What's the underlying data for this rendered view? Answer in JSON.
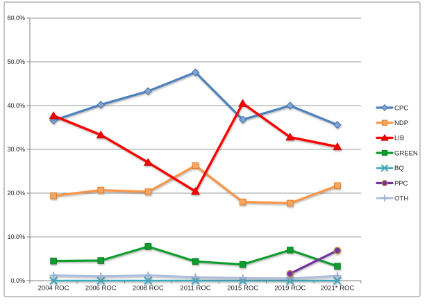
{
  "chart_data": {
    "type": "line",
    "title": "",
    "categories": [
      "2004 ROC",
      "2006 ROC",
      "2008 ROC",
      "2011 ROC",
      "2015 ROC",
      "2019 ROC",
      "2021* ROC"
    ],
    "ylim": [
      0,
      60
    ],
    "ytick_step": 10,
    "ytick_labels": [
      "0.0%",
      "10.0%",
      "20.0%",
      "30.0%",
      "40.0%",
      "50.0%",
      "60.0%"
    ],
    "grid": true,
    "legend_position": "right",
    "series": [
      {
        "name": "CPC",
        "color": "#4E81BD",
        "marker": "diamond",
        "marker_fill": "#7EA6D8",
        "marker_stroke": "#44709F",
        "z": 1,
        "line_width": 3.2,
        "opacity": 1,
        "values": [
          36.6,
          40.2,
          43.3,
          47.6,
          36.8,
          40.0,
          35.6
        ]
      },
      {
        "name": "NDP",
        "color": "#F7964A",
        "marker": "square",
        "marker_fill": "#F9A660",
        "marker_stroke": "#E07C28",
        "z": 2,
        "line_width": 3.2,
        "opacity": 1,
        "values": [
          19.4,
          20.7,
          20.3,
          26.3,
          18.0,
          17.7,
          21.7
        ]
      },
      {
        "name": "LIB",
        "color": "#FC0000",
        "marker": "triangle",
        "marker_fill": "#FC0000",
        "marker_stroke": "#C00000",
        "z": 6,
        "line_width": 3.4,
        "opacity": 1,
        "values": [
          37.7,
          33.3,
          27.0,
          20.4,
          40.5,
          32.8,
          30.6
        ]
      },
      {
        "name": "GREEN",
        "color": "#0D9E2D",
        "marker": "square",
        "marker_fill": "#0D9E2D",
        "marker_stroke": "#0A7A23",
        "z": 3,
        "line_width": 3.2,
        "opacity": 1,
        "values": [
          4.5,
          4.6,
          7.8,
          4.4,
          3.7,
          7.0,
          3.3
        ]
      },
      {
        "name": "BQ",
        "color": "#3CAABE",
        "marker": "x",
        "marker_fill": "#3CAABE",
        "marker_stroke": "#3CAABE",
        "z": 4,
        "line_width": 2.6,
        "opacity": 1,
        "values": [
          0.0,
          0.0,
          0.0,
          0.0,
          0.0,
          0.0,
          0.0
        ]
      },
      {
        "name": "PPC",
        "color": "#7030A0",
        "marker": "circle",
        "marker_fill": "#7030A0",
        "marker_stroke": "#BE783C",
        "z": 7,
        "line_width": 3.2,
        "opacity": 1,
        "values": [
          null,
          null,
          null,
          null,
          null,
          1.6,
          6.9
        ]
      },
      {
        "name": "OTH",
        "color": "#A4B6D9",
        "marker": "plus",
        "marker_fill": "#93A9CE",
        "marker_stroke": "#93A9CE",
        "z": 5,
        "line_width": 3.0,
        "opacity": 0.9,
        "values": [
          1.2,
          1.0,
          1.2,
          0.8,
          0.6,
          0.5,
          1.1
        ]
      }
    ]
  },
  "frame": {
    "background": "#FFFFFF",
    "border_color": "#8E8E8E",
    "gridline_color": "#9B9B9B",
    "axis_color": "#7F7F7F",
    "label_color": "#1A1A1A"
  }
}
